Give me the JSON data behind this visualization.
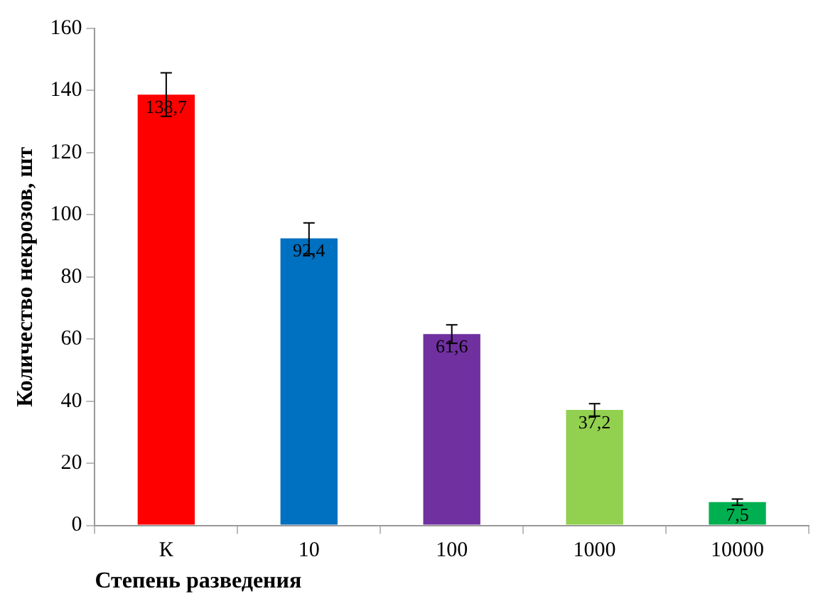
{
  "chart_data": {
    "type": "bar",
    "xlabel": "Степень разведения",
    "ylabel": "Количество некрозов, шт",
    "categories": [
      "К",
      "10",
      "100",
      "1000",
      "10000"
    ],
    "values": [
      138.7,
      92.4,
      61.6,
      37.2,
      7.5
    ],
    "colors": [
      "#ff0000",
      "#0070c0",
      "#7030a0",
      "#92d050",
      "#00b050"
    ],
    "errors": [
      7,
      5,
      3,
      2,
      1
    ],
    "value_labels": [
      "138,7",
      "92,4",
      "61,6",
      "37,2",
      "7,5"
    ],
    "ylim": [
      0,
      160
    ],
    "yticks": [
      0,
      20,
      40,
      60,
      80,
      100,
      120,
      140,
      160
    ],
    "grid": false,
    "legend": false
  }
}
